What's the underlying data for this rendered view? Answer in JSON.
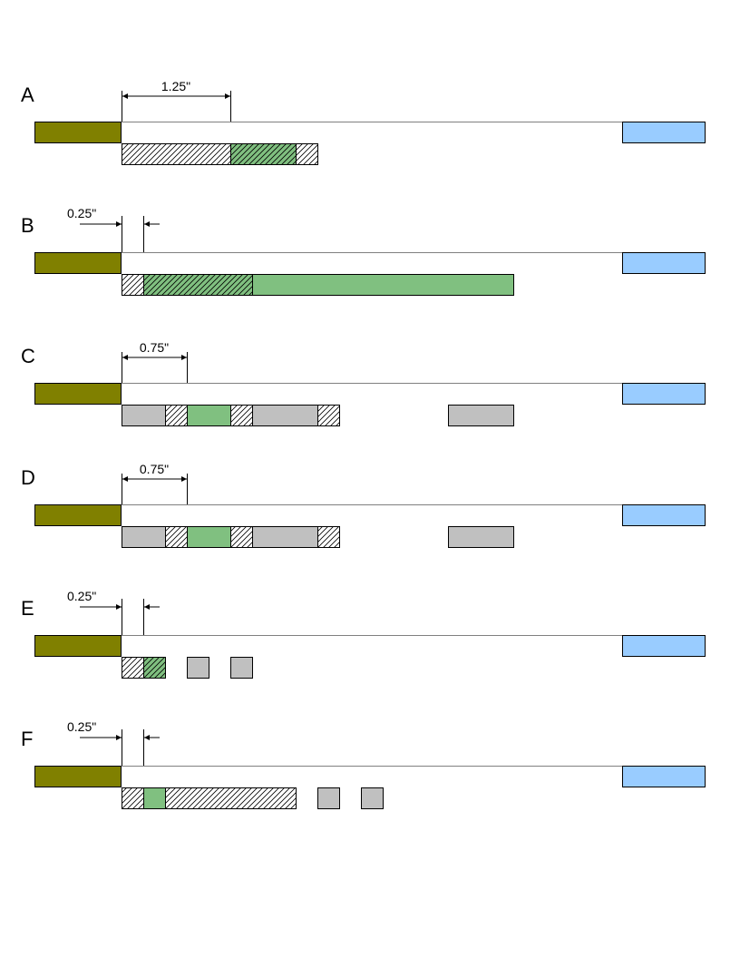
{
  "colors": {
    "olive": "#808000",
    "blue": "#99ccff",
    "green": "#80c080",
    "gray": "#c0c0c0",
    "line": "#000000",
    "baseline": "#808080"
  },
  "rows": [
    {
      "label": "A",
      "dimension": {
        "text": "1.25\"",
        "style": "span",
        "span_in": 1.25
      },
      "blocks": [
        {
          "start": 0,
          "end": 1.25,
          "fill": "hatch"
        },
        {
          "start": 1.25,
          "end": 2.0,
          "fill": "green-hatch"
        },
        {
          "start": 2.0,
          "end": 2.25,
          "fill": "hatch"
        }
      ]
    },
    {
      "label": "B",
      "dimension": {
        "text": "0.25\"",
        "style": "inward",
        "span_in": 0.25
      },
      "blocks": [
        {
          "start": 0,
          "end": 0.25,
          "fill": "hatch"
        },
        {
          "start": 0.25,
          "end": 1.5,
          "fill": "green-hatch"
        },
        {
          "start": 1.5,
          "end": 4.5,
          "fill": "green"
        }
      ]
    },
    {
      "label": "C",
      "dimension": {
        "text": "0.75\"",
        "style": "span",
        "span_in": 0.75
      },
      "blocks": [
        {
          "start": 0,
          "end": 0.5,
          "fill": "gray"
        },
        {
          "start": 0.5,
          "end": 0.75,
          "fill": "hatch"
        },
        {
          "start": 0.75,
          "end": 1.25,
          "fill": "green"
        },
        {
          "start": 1.25,
          "end": 1.5,
          "fill": "hatch"
        },
        {
          "start": 1.5,
          "end": 2.25,
          "fill": "gray"
        },
        {
          "start": 2.25,
          "end": 2.5,
          "fill": "hatch"
        },
        {
          "start": 3.75,
          "end": 4.5,
          "fill": "gray"
        }
      ]
    },
    {
      "label": "D",
      "dimension": {
        "text": "0.75\"",
        "style": "span",
        "span_in": 0.75
      },
      "blocks": [
        {
          "start": 0,
          "end": 0.5,
          "fill": "gray"
        },
        {
          "start": 0.5,
          "end": 0.75,
          "fill": "hatch"
        },
        {
          "start": 0.75,
          "end": 1.25,
          "fill": "green"
        },
        {
          "start": 1.25,
          "end": 1.5,
          "fill": "hatch"
        },
        {
          "start": 1.5,
          "end": 2.25,
          "fill": "gray"
        },
        {
          "start": 2.25,
          "end": 2.5,
          "fill": "hatch"
        },
        {
          "start": 3.75,
          "end": 4.5,
          "fill": "gray"
        }
      ]
    },
    {
      "label": "E",
      "dimension": {
        "text": "0.25\"",
        "style": "inward",
        "span_in": 0.25
      },
      "blocks": [
        {
          "start": 0,
          "end": 0.25,
          "fill": "hatch"
        },
        {
          "start": 0.25,
          "end": 0.5,
          "fill": "green-hatch"
        },
        {
          "start": 0.75,
          "end": 1.0,
          "fill": "gray"
        },
        {
          "start": 1.25,
          "end": 1.5,
          "fill": "gray"
        }
      ]
    },
    {
      "label": "F",
      "dimension": {
        "text": "0.25\"",
        "style": "inward",
        "span_in": 0.25
      },
      "blocks": [
        {
          "start": 0,
          "end": 0.25,
          "fill": "hatch"
        },
        {
          "start": 0.25,
          "end": 0.5,
          "fill": "green"
        },
        {
          "start": 0.5,
          "end": 2.0,
          "fill": "hatch"
        },
        {
          "start": 2.25,
          "end": 2.5,
          "fill": "gray"
        },
        {
          "start": 2.75,
          "end": 3.0,
          "fill": "gray"
        }
      ]
    }
  ]
}
